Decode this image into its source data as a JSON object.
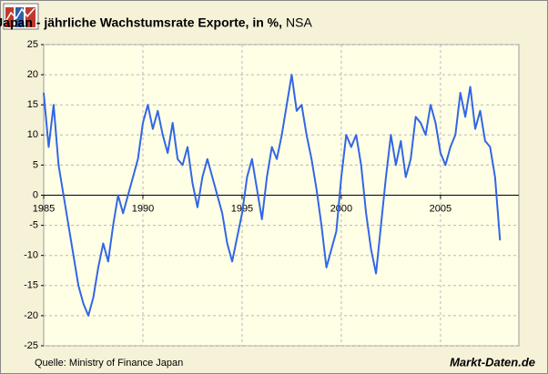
{
  "chart_data": {
    "type": "line",
    "title": "Japan - jährliche Wachstumsrate Exporte, in %,",
    "title_note": "NSA",
    "source": "Quelle:  Ministry of Finance Japan",
    "brand": "Markt-Daten.de",
    "xlim": [
      1985,
      2008.95
    ],
    "xticks": [
      1985,
      1990,
      1995,
      2000,
      2005
    ],
    "ylim": [
      -25,
      25
    ],
    "yticks": [
      -25,
      -20,
      -15,
      -10,
      -5,
      0,
      5,
      10,
      15,
      20,
      25
    ],
    "grid": true,
    "x": [
      1985,
      1985.25,
      1985.5,
      1985.75,
      1986,
      1986.25,
      1986.5,
      1986.75,
      1987,
      1987.25,
      1987.5,
      1987.75,
      1988,
      1988.25,
      1988.5,
      1988.75,
      1989,
      1989.25,
      1989.5,
      1989.75,
      1990,
      1990.25,
      1990.5,
      1990.75,
      1991,
      1991.25,
      1991.5,
      1991.75,
      1992,
      1992.25,
      1992.5,
      1992.75,
      1993,
      1993.25,
      1993.5,
      1993.75,
      1994,
      1994.25,
      1994.5,
      1994.75,
      1995,
      1995.25,
      1995.5,
      1995.75,
      1996,
      1996.25,
      1996.5,
      1996.75,
      1997,
      1997.25,
      1997.5,
      1997.75,
      1998,
      1998.25,
      1998.5,
      1998.75,
      1999,
      1999.25,
      1999.5,
      1999.75,
      2000,
      2000.25,
      2000.5,
      2000.75,
      2001,
      2001.25,
      2001.5,
      2001.75,
      2002,
      2002.25,
      2002.5,
      2002.75,
      2003,
      2003.25,
      2003.5,
      2003.75,
      2004,
      2004.25,
      2004.5,
      2004.75,
      2005,
      2005.25,
      2005.5,
      2005.75,
      2006,
      2006.25,
      2006.5,
      2006.75,
      2007,
      2007.25,
      2007.5,
      2007.75,
      2008
    ],
    "series": [
      {
        "name": "Exporte",
        "color": "#3366e6",
        "values": [
          17,
          8,
          15,
          5,
          0,
          -5,
          -10,
          -15,
          -18,
          -20,
          -17,
          -12,
          -8,
          -11,
          -5,
          0,
          -3,
          0,
          3,
          6,
          12,
          15,
          11,
          14,
          10,
          7,
          12,
          6,
          5,
          8,
          2,
          -2,
          3,
          6,
          3,
          0,
          -3,
          -8,
          -11,
          -7,
          -3,
          3,
          6,
          1,
          -4,
          3,
          8,
          6,
          10,
          15,
          20,
          14,
          15,
          10,
          6,
          1,
          -5,
          -12,
          -9,
          -6,
          3,
          10,
          8,
          10,
          5,
          -3,
          -9,
          -13,
          -5,
          3,
          10,
          5,
          9,
          3,
          6,
          13,
          12,
          10,
          15,
          12,
          7,
          5,
          8,
          10,
          17,
          13,
          18,
          11,
          14,
          9,
          8,
          3,
          -7.5
        ]
      }
    ]
  }
}
